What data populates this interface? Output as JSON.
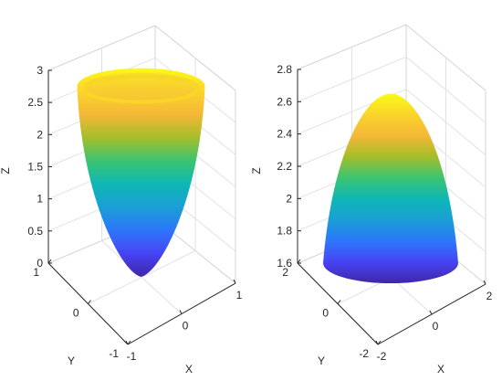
{
  "figure": {
    "colormap": [
      "#3e26a8",
      "#4743f4",
      "#2d76fb",
      "#1a9fd6",
      "#0eb7b4",
      "#3bc471",
      "#a5bd2a",
      "#f5b737",
      "#fad42b",
      "#f9fb15"
    ],
    "grid": "on"
  },
  "chart_data": [
    {
      "type": "surface",
      "title": "",
      "surface": "paraboloid opening upward (bowl)",
      "xlabel": "X",
      "ylabel": "Y",
      "zlabel": "Z",
      "xlim": [
        -1,
        1
      ],
      "ylim": [
        -1,
        1
      ],
      "zlim": [
        0,
        3
      ],
      "x_ticks": [
        "-1",
        "0",
        "1"
      ],
      "y_ticks": [
        "-1",
        "0",
        "1"
      ],
      "z_ticks": [
        "0",
        "0.5",
        "1",
        "1.5",
        "2",
        "2.5",
        "3"
      ],
      "z_min": 0,
      "z_max": 2.75
    },
    {
      "type": "surface",
      "title": "",
      "surface": "paraboloid opening downward (dome)",
      "xlabel": "X",
      "ylabel": "Y",
      "zlabel": "Z",
      "xlim": [
        -2,
        2
      ],
      "ylim": [
        -2,
        2
      ],
      "zlim": [
        1.6,
        2.8
      ],
      "x_ticks": [
        "-2",
        "0",
        "2"
      ],
      "y_ticks": [
        "-2",
        "0",
        "2"
      ],
      "z_ticks": [
        "1.6",
        "1.8",
        "2",
        "2.2",
        "2.4",
        "2.6",
        "2.8"
      ],
      "z_min": 1.6,
      "z_max": 2.65
    }
  ]
}
